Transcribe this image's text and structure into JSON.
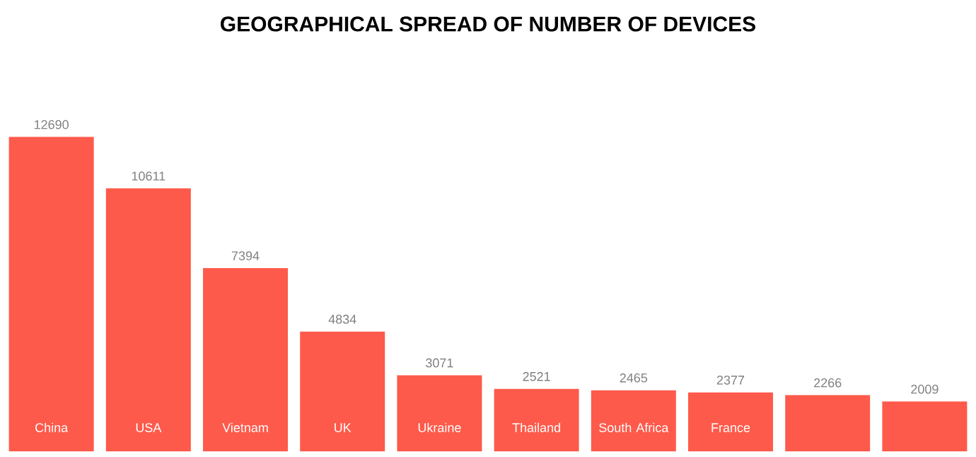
{
  "chart_data": {
    "type": "bar",
    "title": "GEOGRAPHICAL SPREAD OF NUMBER OF DEVICES",
    "categories": [
      "China",
      "USA",
      "Vietnam",
      "UK",
      "Ukraine",
      "Thailand",
      "South Africa",
      "France",
      null,
      null
    ],
    "values": [
      12690,
      10611,
      7394,
      4834,
      3071,
      2521,
      2465,
      2377,
      2266,
      2009
    ],
    "color": "#fe5a4b",
    "data_labels": true
  }
}
